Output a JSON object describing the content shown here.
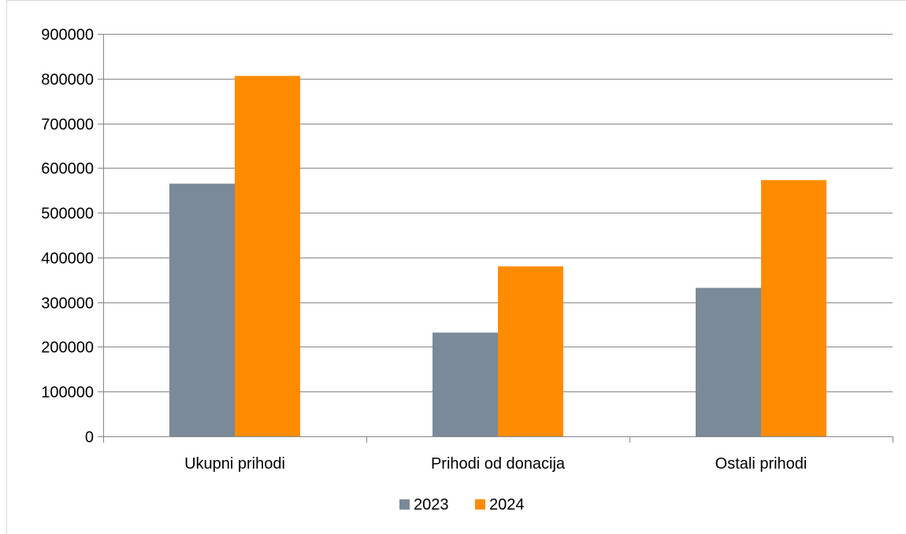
{
  "chart_data": {
    "type": "bar",
    "categories": [
      "Ukupni prihodi",
      "Prihodi od donacija",
      "Ostali prihodi"
    ],
    "series": [
      {
        "name": "2023",
        "values": [
          565000,
          232000,
          332000
        ],
        "color": "#7a8a99"
      },
      {
        "name": "2024",
        "values": [
          806000,
          380000,
          573000
        ],
        "color": "#ff8c00"
      }
    ],
    "ylim": [
      0,
      900000
    ],
    "yticks": [
      "0",
      "100000",
      "200000",
      "300000",
      "400000",
      "500000",
      "600000",
      "700000",
      "800000",
      "900000"
    ],
    "grid": true,
    "legend_position": "bottom",
    "gridline_color": "#868686",
    "axis_color": "#868686"
  }
}
